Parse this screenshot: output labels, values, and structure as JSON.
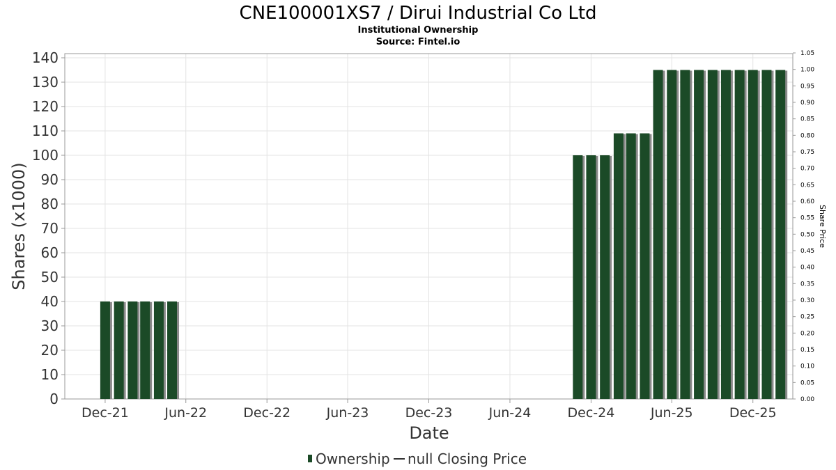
{
  "chart_data": {
    "type": "bar",
    "title": "CNE100001XS7 / Dirui Industrial Co Ltd",
    "subtitle": "Institutional Ownership",
    "source": "Source: Fintel.io",
    "xlabel": "Date",
    "ylabel": "Shares (x1000)",
    "y2label": "Share Price",
    "ylim": [
      0,
      140
    ],
    "y2lim": [
      0,
      1.05
    ],
    "yticks": [
      "0",
      "10",
      "20",
      "30",
      "40",
      "50",
      "60",
      "70",
      "80",
      "90",
      "100",
      "110",
      "120",
      "130",
      "140"
    ],
    "y2ticks": [
      "0.00",
      "0.05",
      "0.10",
      "0.15",
      "0.20",
      "0.25",
      "0.30",
      "0.35",
      "0.40",
      "0.45",
      "0.50",
      "0.55",
      "0.60",
      "0.65",
      "0.70",
      "0.75",
      "0.80",
      "0.85",
      "0.90",
      "0.95",
      "1.00",
      "1.05"
    ],
    "xticks": [
      {
        "label": "Dec-21",
        "date": "2021-12-01"
      },
      {
        "label": "Jun-22",
        "date": "2022-06-01"
      },
      {
        "label": "Dec-22",
        "date": "2022-12-01"
      },
      {
        "label": "Jun-23",
        "date": "2023-06-01"
      },
      {
        "label": "Dec-23",
        "date": "2023-12-01"
      },
      {
        "label": "Jun-24",
        "date": "2024-06-01"
      },
      {
        "label": "Dec-24",
        "date": "2024-12-01"
      },
      {
        "label": "Jun-25",
        "date": "2025-06-01"
      },
      {
        "label": "Dec-25",
        "date": "2025-12-01"
      }
    ],
    "xlim": [
      "2021-09-01",
      "2026-03-01"
    ],
    "grid": true,
    "legend_position": "bottom-center",
    "series": [
      {
        "name": "Ownership",
        "color": "#1b4a27",
        "points": [
          {
            "date": "2021-12-01",
            "value": 40
          },
          {
            "date": "2022-01-01",
            "value": 40
          },
          {
            "date": "2022-02-01",
            "value": 40
          },
          {
            "date": "2022-03-01",
            "value": 40
          },
          {
            "date": "2022-04-01",
            "value": 40
          },
          {
            "date": "2022-05-01",
            "value": 40
          },
          {
            "date": "2024-11-01",
            "value": 100
          },
          {
            "date": "2024-12-01",
            "value": 100
          },
          {
            "date": "2025-01-01",
            "value": 100
          },
          {
            "date": "2025-02-01",
            "value": 109
          },
          {
            "date": "2025-03-01",
            "value": 109
          },
          {
            "date": "2025-04-01",
            "value": 109
          },
          {
            "date": "2025-05-01",
            "value": 135
          },
          {
            "date": "2025-06-01",
            "value": 135
          },
          {
            "date": "2025-07-01",
            "value": 135
          },
          {
            "date": "2025-08-01",
            "value": 135
          },
          {
            "date": "2025-09-01",
            "value": 135
          },
          {
            "date": "2025-10-01",
            "value": 135
          },
          {
            "date": "2025-11-01",
            "value": 135
          },
          {
            "date": "2025-12-01",
            "value": 135
          },
          {
            "date": "2026-01-01",
            "value": 135
          },
          {
            "date": "2026-02-01",
            "value": 135
          }
        ]
      },
      {
        "name": "null Closing Price",
        "color": "#333333",
        "points": []
      }
    ]
  }
}
